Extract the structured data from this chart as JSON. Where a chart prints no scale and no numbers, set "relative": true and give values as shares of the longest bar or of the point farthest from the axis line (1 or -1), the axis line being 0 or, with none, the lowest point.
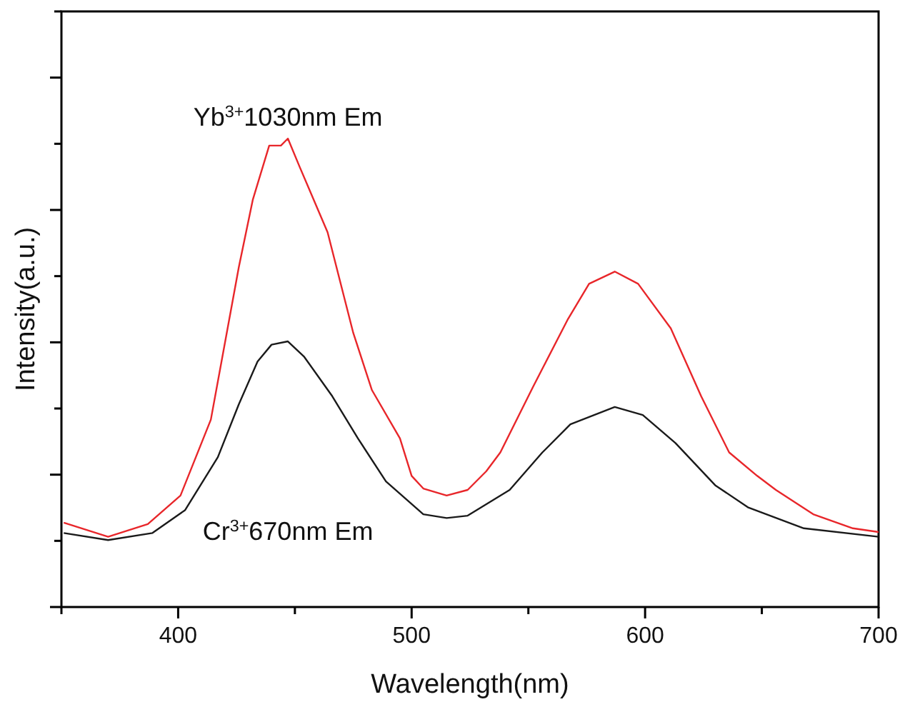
{
  "chart_data": {
    "type": "line",
    "xlabel": "Wavelength(nm)",
    "ylabel": "Intensity(a.u.)",
    "relative": true,
    "tick_labels": "x",
    "xlim": [
      350,
      700
    ],
    "xticks": [
      {
        "value": 350,
        "label": null
      },
      400,
      {
        "value": 450,
        "label": null
      },
      500,
      {
        "value": 550,
        "label": null
      },
      600,
      {
        "value": 650,
        "label": null
      },
      700
    ],
    "grid": false,
    "marker": "none",
    "line_style": "solid",
    "series": [
      {
        "name": "Yb$^{3+}$1030nm Em",
        "color": "#e8262a",
        "x": [
          351,
          370,
          387,
          401,
          414,
          426,
          432,
          439,
          444,
          447,
          452,
          464,
          475,
          483,
          495,
          500,
          505,
          515,
          524,
          532,
          538,
          552,
          567,
          576,
          587,
          597,
          611,
          624,
          636,
          648,
          656,
          672,
          689,
          700
        ],
        "values": [
          0.18,
          0.15,
          0.177,
          0.238,
          0.4,
          0.726,
          0.87,
          0.985,
          0.985,
          1,
          0.94,
          0.8,
          0.585,
          0.463,
          0.36,
          0.28,
          0.253,
          0.238,
          0.25,
          0.29,
          0.33,
          0.47,
          0.615,
          0.69,
          0.716,
          0.69,
          0.595,
          0.45,
          0.33,
          0.28,
          0.25,
          0.198,
          0.168,
          0.16
        ]
      },
      {
        "name": "Cr$^{3+}$670nm Em",
        "color": "#1a1a1a",
        "x": [
          351,
          370,
          389,
          403,
          417,
          426,
          434,
          440,
          447,
          454,
          466,
          477,
          489,
          505,
          515,
          524,
          542,
          556,
          568,
          587,
          599,
          613,
          630,
          644,
          668,
          700
        ],
        "values": [
          0.158,
          0.143,
          0.158,
          0.207,
          0.32,
          0.433,
          0.524,
          0.56,
          0.567,
          0.534,
          0.45,
          0.36,
          0.268,
          0.198,
          0.19,
          0.195,
          0.25,
          0.33,
          0.39,
          0.427,
          0.41,
          0.35,
          0.26,
          0.213,
          0.168,
          0.15
        ]
      }
    ]
  }
}
